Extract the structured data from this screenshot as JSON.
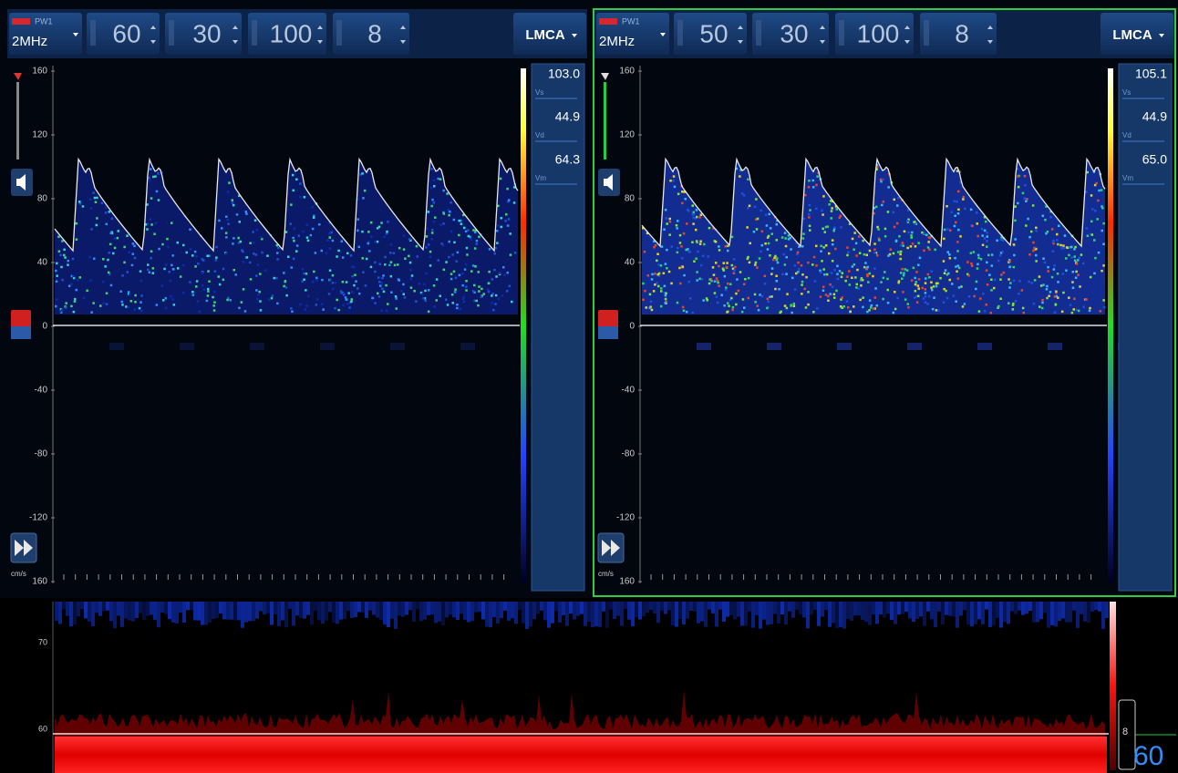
{
  "panels": [
    {
      "mode": "PW1",
      "freq": "2MHz",
      "controls": [
        "60",
        "30",
        "100",
        "8"
      ],
      "vessel": "LMCA",
      "yticks": [
        "160",
        "120",
        "80",
        "40",
        "0",
        "-40",
        "-80",
        "-120",
        "160"
      ],
      "unit": "cm/s",
      "measures": [
        {
          "value": "103.0",
          "label": "Vs"
        },
        {
          "value": "44.9",
          "label": "Vd"
        },
        {
          "value": "64.3",
          "label": "Vm"
        }
      ]
    },
    {
      "mode": "PW1",
      "freq": "2MHz",
      "controls": [
        "50",
        "30",
        "100",
        "8"
      ],
      "vessel": "LMCA",
      "yticks": [
        "160",
        "120",
        "80",
        "40",
        "0",
        "-40",
        "-80",
        "-120",
        "160"
      ],
      "unit": "cm/s",
      "measures": [
        {
          "value": "105.1",
          "label": "Vs"
        },
        {
          "value": "44.9",
          "label": "Vd"
        },
        {
          "value": "65.0",
          "label": "Vm"
        }
      ]
    }
  ],
  "trend": {
    "labels": [
      "70",
      "60"
    ],
    "gate": "8",
    "depth": "60"
  }
}
